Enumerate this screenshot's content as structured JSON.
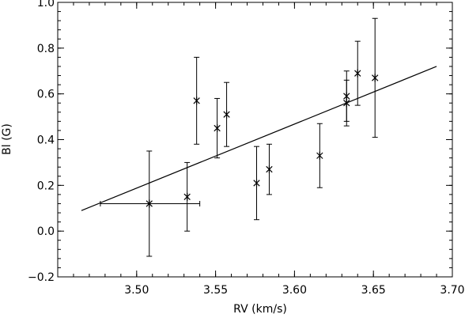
{
  "chart_data": {
    "type": "scatter",
    "title": "",
    "xlabel": "RV (km/s)",
    "ylabel": "Bl (G)",
    "xlim": [
      3.45,
      3.7
    ],
    "ylim": [
      -0.2,
      1.0
    ],
    "xticks": [
      3.5,
      3.55,
      3.6,
      3.65,
      3.7
    ],
    "xtick_labels": [
      "3.50",
      "3.55",
      "3.60",
      "3.65",
      "3.70"
    ],
    "yticks": [
      -0.2,
      0.0,
      0.2,
      0.4,
      0.6,
      0.8,
      1.0
    ],
    "ytick_labels": [
      "−0.2",
      "0.0",
      "0.2",
      "0.4",
      "0.6",
      "0.8",
      "1.0"
    ],
    "grid": false,
    "legend": "none",
    "points": [
      {
        "x": 3.508,
        "y": 0.12,
        "y_low": -0.11,
        "y_high": 0.35,
        "x_low": 3.477,
        "x_high": 3.54
      },
      {
        "x": 3.532,
        "y": 0.15,
        "y_low": 0.0,
        "y_high": 0.3
      },
      {
        "x": 3.538,
        "y": 0.57,
        "y_low": 0.38,
        "y_high": 0.76
      },
      {
        "x": 3.551,
        "y": 0.45,
        "y_low": 0.32,
        "y_high": 0.58
      },
      {
        "x": 3.557,
        "y": 0.51,
        "y_low": 0.37,
        "y_high": 0.65
      },
      {
        "x": 3.576,
        "y": 0.21,
        "y_low": 0.05,
        "y_high": 0.37
      },
      {
        "x": 3.584,
        "y": 0.27,
        "y_low": 0.16,
        "y_high": 0.38
      },
      {
        "x": 3.616,
        "y": 0.33,
        "y_low": 0.19,
        "y_high": 0.47
      },
      {
        "x": 3.633,
        "y": 0.59,
        "y_low": 0.48,
        "y_high": 0.7
      },
      {
        "x": 3.633,
        "y": 0.56,
        "y_low": 0.46,
        "y_high": 0.66
      },
      {
        "x": 3.64,
        "y": 0.69,
        "y_low": 0.55,
        "y_high": 0.83
      },
      {
        "x": 3.651,
        "y": 0.67,
        "y_low": 0.41,
        "y_high": 0.93
      }
    ],
    "fit_line": {
      "x": [
        3.465,
        3.69
      ],
      "y": [
        0.09,
        0.72
      ]
    }
  }
}
